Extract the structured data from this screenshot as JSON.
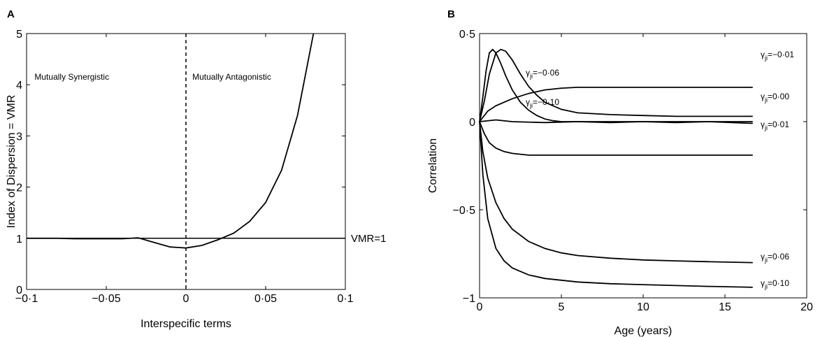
{
  "chart_data": [
    {
      "panel": "A",
      "type": "line",
      "xlabel": "Interspecific terms",
      "ylabel": "Index of Dispersion = VMR",
      "xlim": [
        -0.1,
        0.1
      ],
      "ylim": [
        0,
        5
      ],
      "xticks": [
        -0.1,
        -0.05,
        0,
        0.05,
        0.1
      ],
      "xtick_labels": [
        "−0·1",
        "−0·05",
        "0",
        "0·05",
        "0·1"
      ],
      "yticks": [
        0,
        1,
        2,
        3,
        4,
        5
      ],
      "ytick_labels": [
        "0",
        "1",
        "2",
        "3",
        "4",
        "5"
      ],
      "regions": [
        {
          "label": "Mutually Synergistic",
          "x": -0.095,
          "y": 4.1
        },
        {
          "label": "Mutually Antagonistic",
          "x": 0.004,
          "y": 4.1
        }
      ],
      "divider_x": 0,
      "reference_line": {
        "y": 1,
        "label": "VMR=1"
      },
      "series": [
        {
          "x": [
            -0.1,
            -0.09,
            -0.08,
            -0.07,
            -0.06,
            -0.05,
            -0.04,
            -0.03,
            -0.02,
            -0.01,
            0,
            0.01,
            0.02,
            0.03,
            0.04,
            0.05,
            0.06,
            0.07,
            0.08
          ],
          "y": [
            1.0,
            1.0,
            1.0,
            0.99,
            0.99,
            0.99,
            0.99,
            1.01,
            0.92,
            0.83,
            0.81,
            0.86,
            0.97,
            1.1,
            1.33,
            1.7,
            2.33,
            3.4,
            5.0
          ]
        }
      ]
    },
    {
      "panel": "B",
      "type": "line",
      "xlabel": "Age (years)",
      "ylabel": "Correlation",
      "xlim": [
        0,
        20
      ],
      "ylim": [
        -1,
        0.5
      ],
      "xticks": [
        0,
        5,
        10,
        15,
        20
      ],
      "xtick_labels": [
        "0",
        "5",
        "10",
        "15",
        "20"
      ],
      "yticks": [
        -1,
        -0.5,
        0,
        0.5
      ],
      "ytick_labels": [
        "−1",
        "−0·5",
        "0",
        "0·5"
      ],
      "series": [
        {
          "label": {
            "pre": "γ",
            "sub": "ji",
            "post": "=−0·01"
          },
          "x": [
            0,
            0.5,
            1,
            2,
            3,
            4,
            5,
            6,
            8,
            10,
            12,
            14,
            16.7
          ],
          "y": [
            0,
            0.06,
            0.09,
            0.13,
            0.16,
            0.18,
            0.19,
            0.195,
            0.195,
            0.195,
            0.195,
            0.195,
            0.195
          ]
        },
        {
          "label": {
            "pre": "γ",
            "sub": "ji",
            "post": "=0·00"
          },
          "x": [
            0,
            1,
            2,
            4,
            6,
            8,
            10,
            12,
            14,
            16.7
          ],
          "y": [
            0,
            0.01,
            0,
            -0.005,
            0,
            -0.005,
            0,
            -0.005,
            0,
            -0.01
          ]
        },
        {
          "label": {
            "pre": "γ",
            "sub": "ji",
            "post": "=0·01"
          },
          "x": [
            0,
            0.3,
            0.6,
            1,
            1.5,
            2,
            3,
            4,
            6,
            8,
            10,
            12,
            14,
            16.7
          ],
          "y": [
            0,
            -0.07,
            -0.12,
            -0.15,
            -0.17,
            -0.18,
            -0.19,
            -0.19,
            -0.19,
            -0.19,
            -0.19,
            -0.19,
            -0.19,
            -0.19
          ]
        },
        {
          "label": {
            "pre": "γ",
            "sub": "ji",
            "post": "=0·06"
          },
          "x": [
            0,
            0.2,
            0.5,
            1,
            1.5,
            2,
            3,
            4,
            5,
            6,
            8,
            10,
            12,
            14,
            16.7
          ],
          "y": [
            0,
            -0.17,
            -0.32,
            -0.46,
            -0.55,
            -0.61,
            -0.68,
            -0.72,
            -0.745,
            -0.76,
            -0.775,
            -0.785,
            -0.79,
            -0.795,
            -0.8
          ]
        },
        {
          "label": {
            "pre": "γ",
            "sub": "ji",
            "post": "=0·10"
          },
          "x": [
            0,
            0.2,
            0.5,
            1,
            1.5,
            2,
            3,
            4,
            5,
            6,
            8,
            10,
            12,
            14,
            16.7
          ],
          "y": [
            0,
            -0.3,
            -0.55,
            -0.72,
            -0.79,
            -0.83,
            -0.87,
            -0.89,
            -0.9,
            -0.91,
            -0.92,
            -0.925,
            -0.93,
            -0.935,
            -0.94
          ]
        },
        {
          "label": {
            "pre": "γ",
            "sub": "ji",
            "post": "=−0·06"
          },
          "x": [
            0,
            0.2,
            0.4,
            0.6,
            0.8,
            1,
            1.3,
            1.6,
            2,
            2.5,
            3,
            3.5,
            4,
            4.5,
            5,
            6,
            8,
            10,
            12,
            14,
            16.7
          ],
          "y": [
            0,
            0.14,
            0.29,
            0.39,
            0.41,
            0.39,
            0.33,
            0.26,
            0.18,
            0.11,
            0.065,
            0.035,
            0.015,
            0.005,
            0,
            0,
            0,
            0,
            0,
            0,
            0
          ]
        },
        {
          "label": {
            "pre": "γ",
            "sub": "ji",
            "post": "=−0·10"
          },
          "x": [
            0,
            0.3,
            0.6,
            1,
            1.3,
            1.6,
            2,
            2.5,
            3,
            3.5,
            4,
            5,
            6,
            8,
            10,
            12,
            14,
            16.7
          ],
          "y": [
            0,
            0.12,
            0.27,
            0.39,
            0.41,
            0.4,
            0.35,
            0.27,
            0.2,
            0.15,
            0.11,
            0.07,
            0.05,
            0.04,
            0.035,
            0.03,
            0.03,
            0.03
          ]
        }
      ]
    }
  ]
}
